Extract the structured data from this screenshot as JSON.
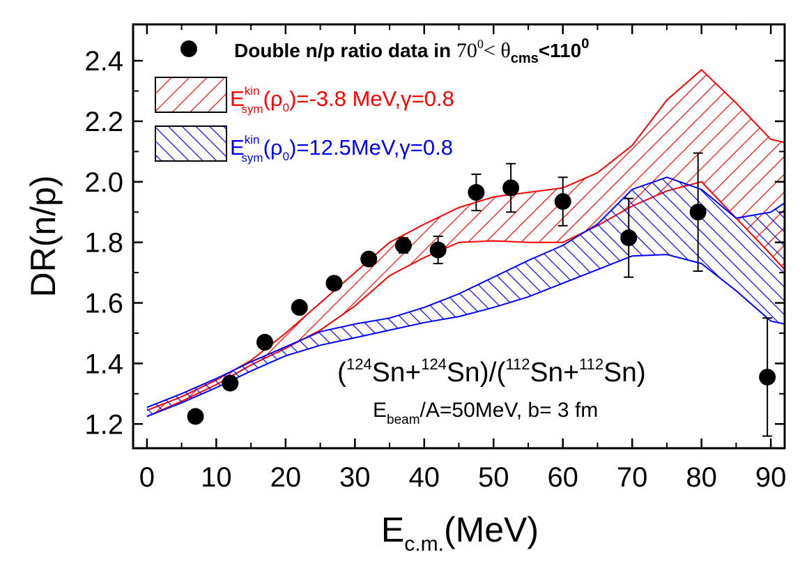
{
  "chart_data": {
    "type": "scatter",
    "xlabel_main": "E",
    "xlabel_sub": "c.m.",
    "xlabel_unit": "(MeV)",
    "ylabel": "DR(n/p)",
    "xlim": [
      -2,
      92
    ],
    "ylim": [
      1.12,
      2.52
    ],
    "xticks": [
      0,
      10,
      20,
      30,
      40,
      50,
      60,
      70,
      80,
      90
    ],
    "xtick_labels": [
      "0",
      "10",
      "20",
      "30",
      "40",
      "50",
      "60",
      "70",
      "80",
      "90"
    ],
    "yticks": [
      1.2,
      1.4,
      1.6,
      1.8,
      2.0,
      2.2,
      2.4
    ],
    "ytick_labels": [
      "1.2",
      "1.4",
      "1.6",
      "1.8",
      "2.0",
      "2.2",
      "2.4"
    ],
    "grid": false,
    "legend_position": "top-left",
    "data_points": {
      "name": "Double n/p ratio data in 70⁰< θcms<110⁰",
      "color": "#000000",
      "x": [
        7,
        12,
        17,
        22,
        27,
        32,
        37,
        42,
        47.5,
        52.5,
        60,
        69.5,
        79.5,
        89.5
      ],
      "y": [
        1.225,
        1.335,
        1.47,
        1.585,
        1.665,
        1.745,
        1.79,
        1.775,
        1.965,
        1.98,
        1.935,
        1.815,
        1.9,
        1.355
      ],
      "err": [
        0.015,
        0.02,
        0.02,
        0.02,
        0.02,
        0.02,
        0.025,
        0.045,
        0.06,
        0.08,
        0.08,
        0.13,
        0.195,
        0.195
      ]
    },
    "bands": [
      {
        "name": "E_sym^kin(ρ0)=-3.8 MeV,γ=0.8",
        "color": "#ff0000",
        "hatch": "forward",
        "x": [
          0,
          5,
          10,
          15,
          20,
          25,
          30,
          35,
          40,
          45,
          50,
          55,
          60,
          65,
          70,
          75,
          80,
          85,
          90,
          92
        ],
        "upper": [
          1.245,
          1.29,
          1.345,
          1.41,
          1.5,
          1.6,
          1.7,
          1.8,
          1.86,
          1.915,
          1.95,
          1.965,
          1.98,
          2.03,
          2.12,
          2.27,
          2.37,
          2.26,
          2.14,
          2.13
        ],
        "lower": [
          1.225,
          1.275,
          1.33,
          1.395,
          1.45,
          1.51,
          1.59,
          1.69,
          1.75,
          1.8,
          1.805,
          1.8,
          1.8,
          1.855,
          1.92,
          1.97,
          2.0,
          1.88,
          1.76,
          1.71
        ]
      },
      {
        "name": "E_sym^kin(ρ0)=12.5MeV,γ=0.8",
        "color": "#0000ff",
        "hatch": "backward",
        "x": [
          0,
          5,
          10,
          15,
          20,
          25,
          30,
          35,
          40,
          45,
          50,
          55,
          60,
          65,
          70,
          75,
          80,
          85,
          90,
          92
        ],
        "upper": [
          1.255,
          1.3,
          1.35,
          1.405,
          1.455,
          1.505,
          1.53,
          1.55,
          1.585,
          1.63,
          1.685,
          1.74,
          1.79,
          1.86,
          1.975,
          2.015,
          1.975,
          1.88,
          1.9,
          1.93
        ],
        "lower": [
          1.225,
          1.27,
          1.32,
          1.375,
          1.425,
          1.46,
          1.485,
          1.51,
          1.535,
          1.555,
          1.585,
          1.62,
          1.665,
          1.71,
          1.755,
          1.76,
          1.73,
          1.64,
          1.54,
          1.53
        ]
      }
    ],
    "annotations": {
      "reaction_line": "(¹²⁴Sn+¹²⁴Sn)/(¹¹²Sn+¹¹²Sn)",
      "beam_line": "E_beam/A=50MeV, b= 3 fm"
    }
  },
  "legend": {
    "data_label_part1": "Double n/p ratio data in ",
    "data_label_part2": "70",
    "data_label_sup1": "0",
    "data_label_part3": "< θ",
    "data_label_sub": "cms",
    "data_label_part4": "<110",
    "data_label_sup2": "0",
    "band1_E": "E",
    "band1_sup": "kin",
    "band1_sub": "sym",
    "band1_rest": "(ρ",
    "band1_rho_sub": "0",
    "band1_value": ")=-3.8 MeV,γ=0.8",
    "band2_E": "E",
    "band2_sup": "kin",
    "band2_sub": "sym",
    "band2_rest": "(ρ",
    "band2_rho_sub": "0",
    "band2_value": ")=12.5MeV,γ=0.8"
  },
  "annotation_parts": {
    "reaction_open": "(",
    "mass_124a": "124",
    "sn_plus_1": "Sn+",
    "mass_124b": "124",
    "sn_close_slash": "Sn)/(",
    "mass_112a": "112",
    "sn_plus_2": "Sn+",
    "mass_112b": "112",
    "sn_close": "Sn)",
    "beam_E": "E",
    "beam_sub": "beam",
    "beam_rest": "/A=50MeV, b= 3 fm"
  }
}
